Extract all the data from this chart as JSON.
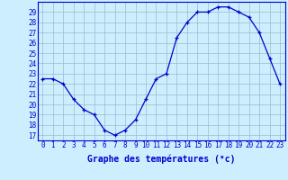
{
  "hours": [
    0,
    1,
    2,
    3,
    4,
    5,
    6,
    7,
    8,
    9,
    10,
    11,
    12,
    13,
    14,
    15,
    16,
    17,
    18,
    19,
    20,
    21,
    22,
    23
  ],
  "temperatures": [
    22.5,
    22.5,
    22.0,
    20.5,
    19.5,
    19.0,
    17.5,
    17.0,
    17.5,
    18.5,
    20.5,
    22.5,
    23.0,
    26.5,
    28.0,
    29.0,
    29.0,
    29.5,
    29.5,
    29.0,
    28.5,
    27.0,
    24.5,
    22.0
  ],
  "ylabel_values": [
    17,
    18,
    19,
    20,
    21,
    22,
    23,
    24,
    25,
    26,
    27,
    28,
    29
  ],
  "xlabel_label": "Graphe des températures (°c)",
  "ylim": [
    16.5,
    30.0
  ],
  "xlim": [
    -0.5,
    23.5
  ],
  "line_color": "#0000cc",
  "bg_color": "#cceeff",
  "grid_color": "#99bbcc",
  "axis_label_color": "#0000cc",
  "tick_label_color": "#0000cc",
  "tick_fontsize": 5.5,
  "xlabel_fontsize": 7.0
}
